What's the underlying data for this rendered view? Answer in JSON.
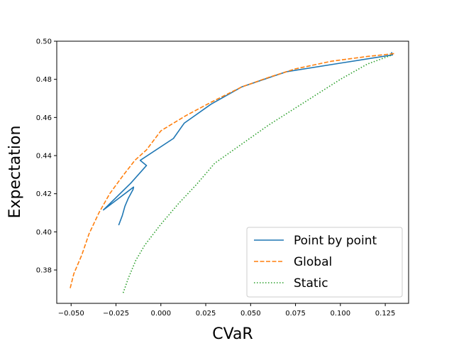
{
  "chart_data": {
    "type": "line",
    "title": "",
    "xlabel": "CVaR",
    "ylabel": "Expectation",
    "xlim": [
      -0.058,
      0.138
    ],
    "ylim": [
      0.3625,
      0.5
    ],
    "xticks": [
      -0.05,
      -0.025,
      0.0,
      0.025,
      0.05,
      0.075,
      0.1,
      0.125
    ],
    "xtick_labels": [
      "−0.050",
      "−0.025",
      "0.000",
      "0.025",
      "0.050",
      "0.075",
      "0.100",
      "0.125"
    ],
    "yticks": [
      0.38,
      0.4,
      0.42,
      0.44,
      0.46,
      0.48,
      0.5
    ],
    "ytick_labels": [
      "0.38",
      "0.40",
      "0.42",
      "0.44",
      "0.46",
      "0.48",
      "0.50"
    ],
    "grid": false,
    "legend_position": "bottom-right",
    "series": [
      {
        "name": "Point by point",
        "color": "#1f77b4",
        "dash": "solid",
        "points": [
          [
            -0.0235,
            0.4035
          ],
          [
            -0.0215,
            0.4085
          ],
          [
            -0.02,
            0.4135
          ],
          [
            -0.0182,
            0.4175
          ],
          [
            -0.0155,
            0.4222
          ],
          [
            -0.0152,
            0.4235
          ],
          [
            -0.032,
            0.4115
          ],
          [
            -0.0168,
            0.4255
          ],
          [
            -0.008,
            0.4348
          ],
          [
            -0.0115,
            0.4375
          ],
          [
            0.007,
            0.449
          ],
          [
            0.013,
            0.457
          ],
          [
            0.028,
            0.467
          ],
          [
            0.045,
            0.476
          ],
          [
            0.07,
            0.484
          ],
          [
            0.1,
            0.4885
          ],
          [
            0.129,
            0.4928
          ],
          [
            0.1285,
            0.494
          ],
          [
            0.1292,
            0.493
          ]
        ]
      },
      {
        "name": "Global",
        "color": "#ff7f0e",
        "dash": "dashed",
        "points": [
          [
            -0.0505,
            0.3705
          ],
          [
            -0.0485,
            0.378
          ],
          [
            -0.044,
            0.388
          ],
          [
            -0.04,
            0.399
          ],
          [
            -0.0345,
            0.41
          ],
          [
            -0.0285,
            0.42
          ],
          [
            -0.0215,
            0.429
          ],
          [
            -0.0145,
            0.4375
          ],
          [
            -0.008,
            0.443
          ],
          [
            0.0,
            0.453
          ],
          [
            0.014,
            0.461
          ],
          [
            0.028,
            0.468
          ],
          [
            0.045,
            0.476
          ],
          [
            0.06,
            0.481
          ],
          [
            0.075,
            0.4855
          ],
          [
            0.095,
            0.4895
          ],
          [
            0.115,
            0.492
          ],
          [
            0.13,
            0.4935
          ]
        ]
      },
      {
        "name": "Static",
        "color": "#2ca02c",
        "dash": "dotted",
        "points": [
          [
            -0.021,
            0.368
          ],
          [
            -0.018,
            0.376
          ],
          [
            -0.014,
            0.385
          ],
          [
            -0.009,
            0.393
          ],
          [
            0.0,
            0.404
          ],
          [
            0.01,
            0.415
          ],
          [
            0.02,
            0.425
          ],
          [
            0.03,
            0.436
          ],
          [
            0.045,
            0.446
          ],
          [
            0.06,
            0.456
          ],
          [
            0.08,
            0.468
          ],
          [
            0.1,
            0.48
          ],
          [
            0.115,
            0.488
          ],
          [
            0.128,
            0.4925
          ]
        ]
      }
    ]
  }
}
